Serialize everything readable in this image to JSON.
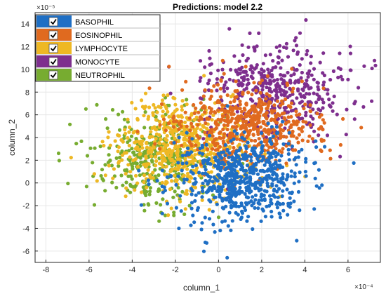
{
  "chart_data": {
    "type": "scatter",
    "title": "Predictions: model 2.2",
    "xlabel": "column_1",
    "ylabel": "column_2",
    "x_multiplier": "×10⁻⁴",
    "y_multiplier": "×10⁻⁵",
    "xlim": [
      -8.5,
      7.5
    ],
    "ylim": [
      -7,
      15
    ],
    "xticks": [
      -8,
      -6,
      -4,
      -2,
      0,
      2,
      4,
      6
    ],
    "yticks": [
      -6,
      -4,
      -2,
      0,
      2,
      4,
      6,
      8,
      10,
      12,
      14
    ],
    "grid": true,
    "legend_position": "top-left",
    "series": [
      {
        "name": "BASOPHIL",
        "color": "#1f6fc4",
        "center": [
          1.0,
          0.3
        ],
        "spread": [
          1.6,
          2.0
        ],
        "count": 650
      },
      {
        "name": "EOSINOPHIL",
        "color": "#e06a1f",
        "center": [
          1.2,
          5.0
        ],
        "spread": [
          1.7,
          1.8
        ],
        "count": 550
      },
      {
        "name": "LYMPHOCYTE",
        "color": "#eeb824",
        "center": [
          -1.6,
          3.0
        ],
        "spread": [
          1.6,
          2.0
        ],
        "count": 600
      },
      {
        "name": "MONOCYTE",
        "color": "#7e2f8e",
        "center": [
          2.6,
          8.3
        ],
        "spread": [
          1.7,
          2.1
        ],
        "count": 450
      },
      {
        "name": "NEUTROPHIL",
        "color": "#77ac30",
        "center": [
          -3.0,
          2.2
        ],
        "spread": [
          1.5,
          2.1
        ],
        "count": 350
      }
    ]
  }
}
